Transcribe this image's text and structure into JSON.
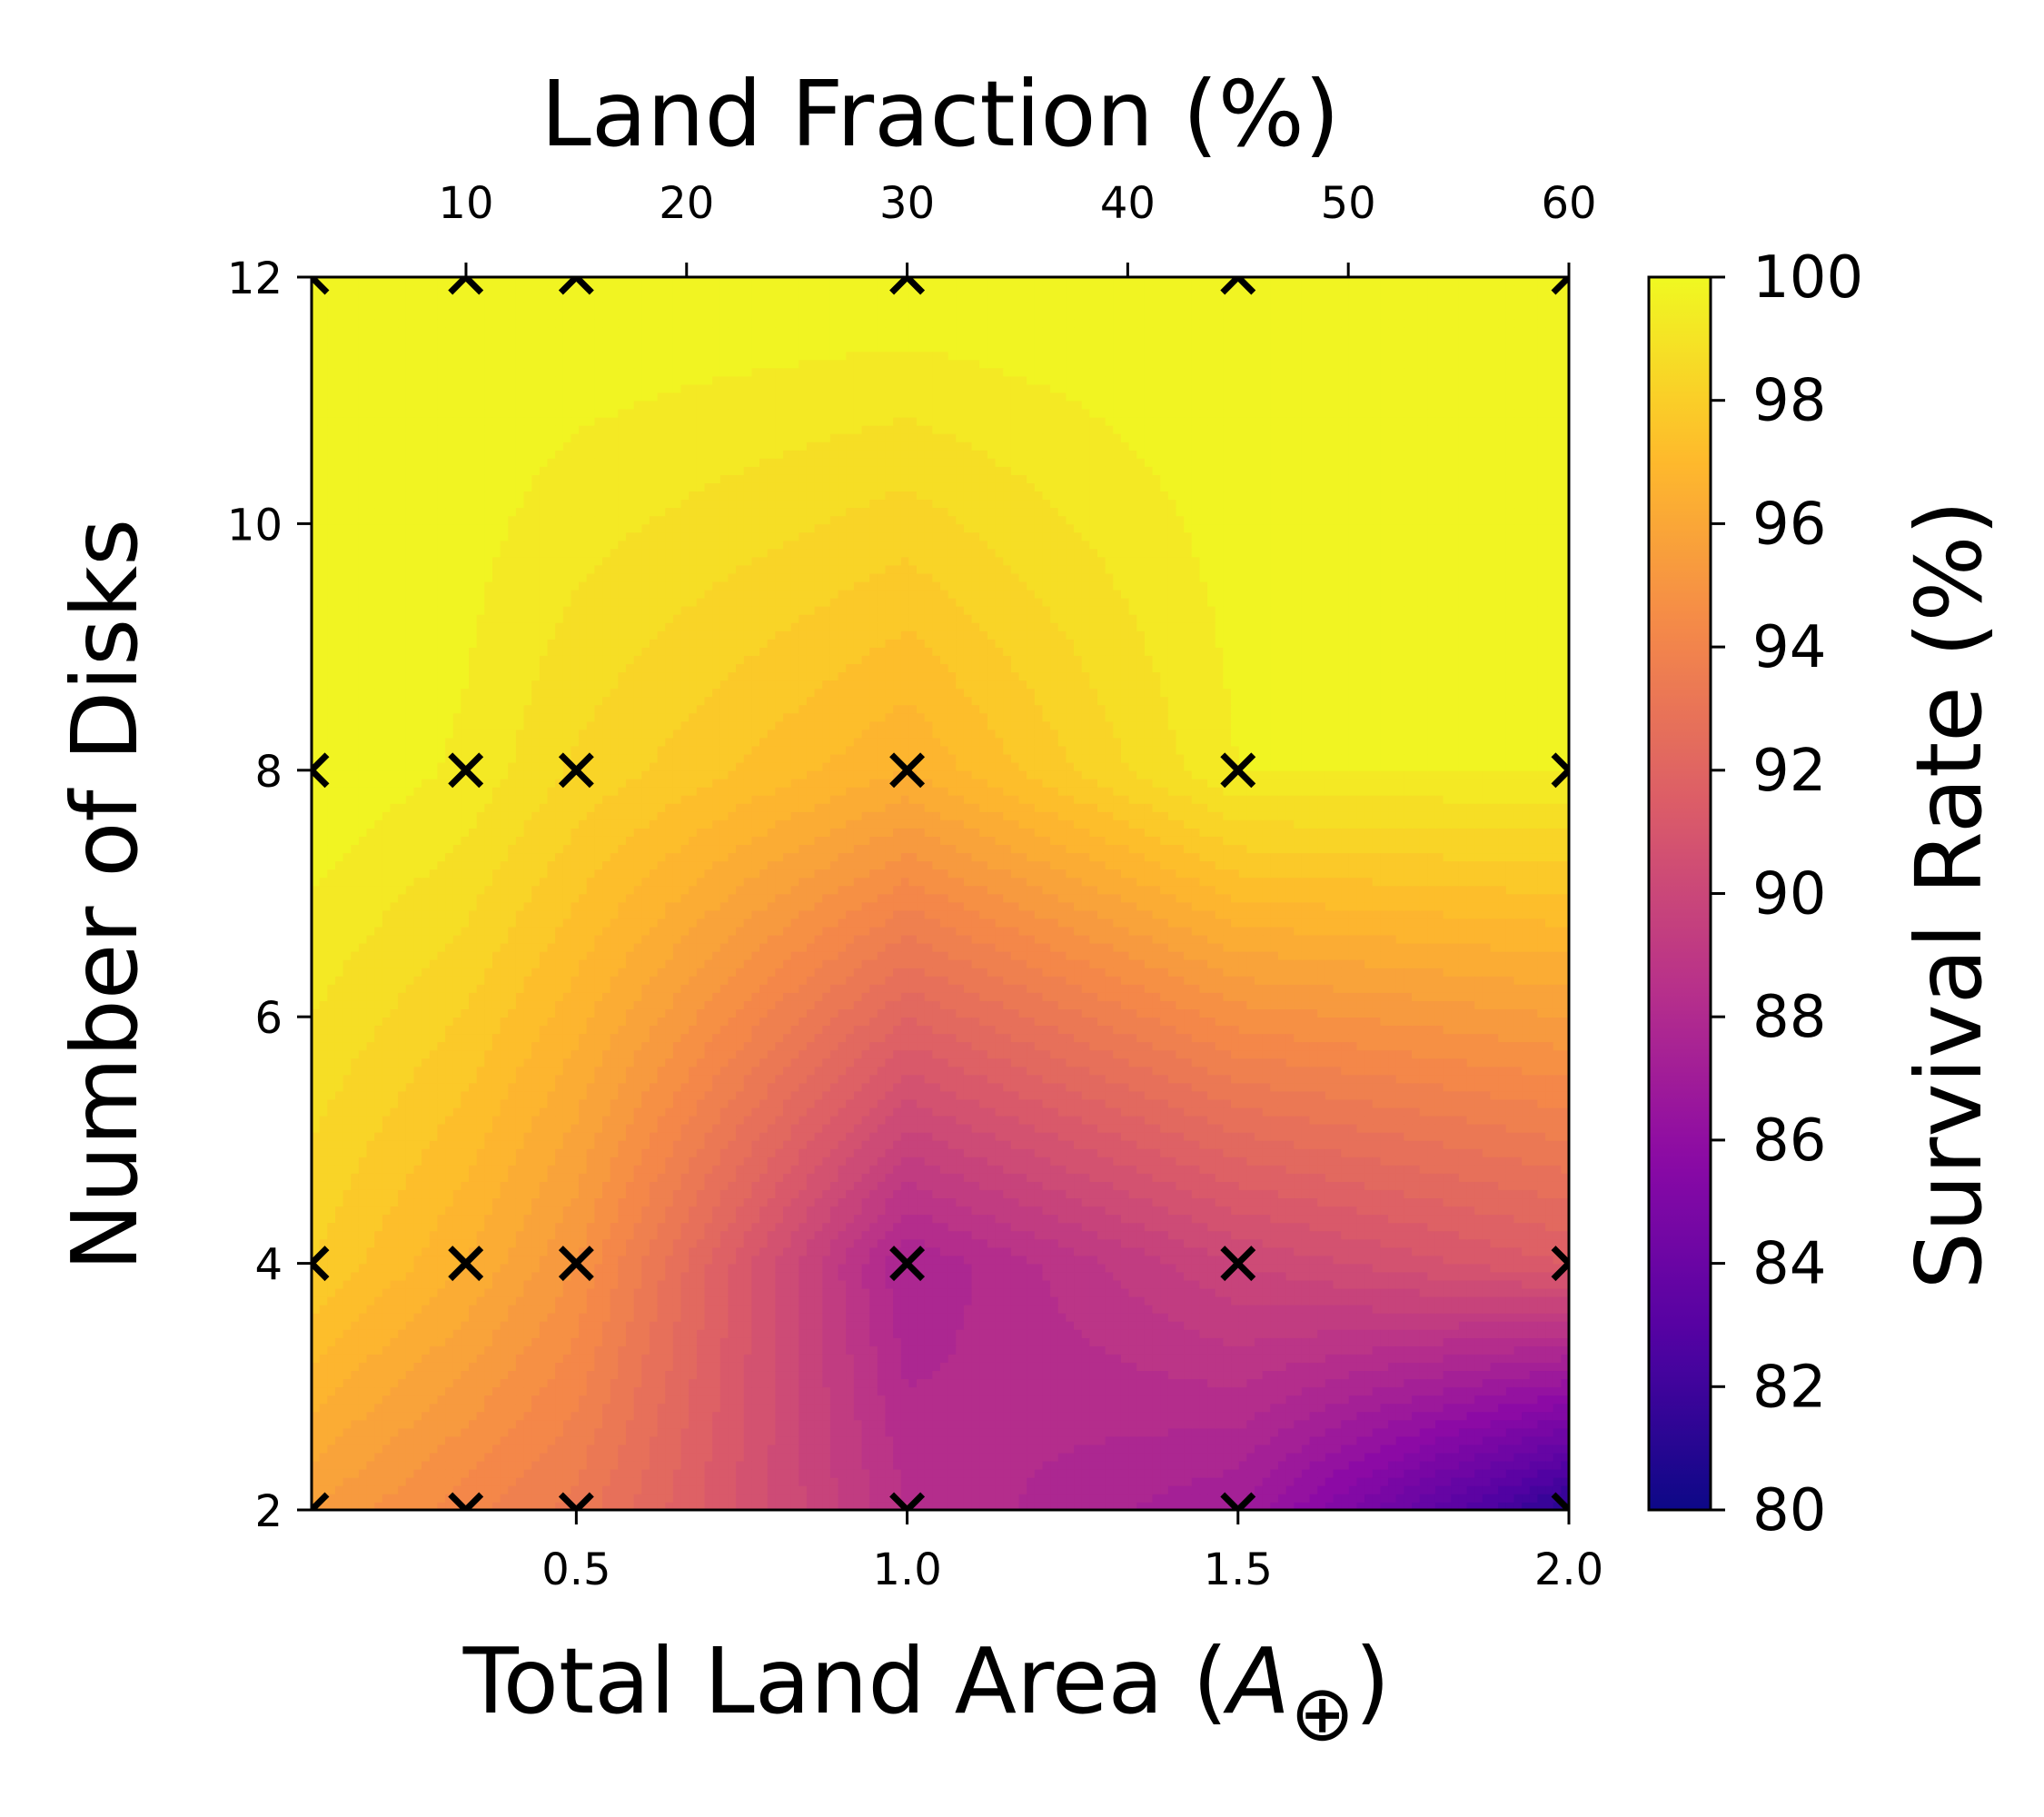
{
  "chart_data": {
    "type": "heatmap",
    "subtype": "filled-contour",
    "colormap": "plasma",
    "x_bottom": {
      "label": "Total Land Area (A⊕)",
      "label_main": "Total Land Area (",
      "label_symbol": "A",
      "label_sub": "⊕",
      "label_close": ")",
      "lim": [
        0.1,
        2.0
      ],
      "ticks": [
        0.5,
        1.0,
        1.5,
        2.0
      ],
      "tick_labels": [
        "0.5",
        "1.0",
        "1.5",
        "2.0"
      ]
    },
    "x_top": {
      "label": "Land Fraction (%)",
      "ticks": [
        10,
        20,
        30,
        40,
        50,
        60
      ],
      "tick_labels": [
        "10",
        "20",
        "30",
        "40",
        "50",
        "60"
      ],
      "percent_per_area": 30
    },
    "y": {
      "label": "Number of Disks",
      "lim": [
        2,
        12
      ],
      "ticks": [
        2,
        4,
        6,
        8,
        10,
        12
      ],
      "tick_labels": [
        "2",
        "4",
        "6",
        "8",
        "10",
        "12"
      ]
    },
    "colorbar": {
      "label": "Survival Rate (%)",
      "lim": [
        80,
        100
      ],
      "ticks": [
        80,
        82,
        84,
        86,
        88,
        90,
        92,
        94,
        96,
        98,
        100
      ],
      "tick_labels": [
        "80",
        "82",
        "84",
        "86",
        "88",
        "90",
        "92",
        "94",
        "96",
        "98",
        "100"
      ],
      "levels": 40
    },
    "grid_x": [
      0.1,
      0.333,
      0.5,
      1.0,
      1.5,
      2.0
    ],
    "grid_y": [
      2,
      4,
      8,
      12
    ],
    "z": [
      [
        95.5,
        94.2,
        93.3,
        88.5,
        87.0,
        81.0
      ],
      [
        98.0,
        96.5,
        95.0,
        87.5,
        90.0,
        91.5
      ],
      [
        100.0,
        99.4,
        98.4,
        96.5,
        99.5,
        99.5
      ],
      [
        100.0,
        100.0,
        100.0,
        100.0,
        100.0,
        100.0
      ]
    ],
    "markers": "x at every sampled grid point"
  }
}
